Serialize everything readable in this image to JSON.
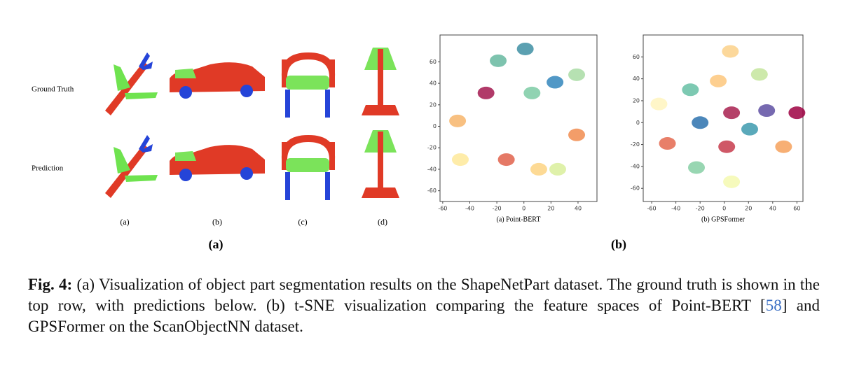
{
  "figure_a": {
    "row_labels": [
      "Ground Truth",
      "Prediction"
    ],
    "object_labels": [
      "(a)",
      "(b)",
      "(c)",
      "(d)"
    ],
    "label": "(a)"
  },
  "figure_b": {
    "label": "(b)"
  },
  "chart_data": [
    {
      "type": "scatter",
      "xlabel": "(a) Point-BERT",
      "x": [
        1,
        -19,
        23,
        39,
        -28,
        6,
        -49,
        39,
        -47,
        -13,
        11,
        25
      ],
      "y": [
        72,
        61,
        41,
        48,
        31,
        31,
        5,
        -8,
        -31,
        -31,
        -40,
        -40
      ],
      "colors": [
        "#3e8fa3",
        "#66b9a0",
        "#3286bc",
        "#a9dca4",
        "#a3174f",
        "#7ccba4",
        "#f7b56b",
        "#f18c4f",
        "#fee99a",
        "#e0624b",
        "#fdd482",
        "#d9ef9b"
      ],
      "xlim": [
        -62,
        54
      ],
      "ylim": [
        -70,
        85
      ],
      "xticks": [
        -60,
        -40,
        -20,
        0,
        20,
        40
      ],
      "yticks": [
        60,
        40,
        20,
        0,
        -20,
        -40,
        -60
      ]
    },
    {
      "type": "scatter",
      "xlabel": "(b) GPSFormer",
      "x": [
        5,
        29,
        -5,
        -28,
        -54,
        -20,
        6,
        35,
        60,
        21,
        -47,
        2,
        49,
        -23,
        6
      ],
      "y": [
        65,
        44,
        38,
        30,
        17,
        0,
        9,
        11,
        9,
        -6,
        -19,
        -22,
        -22,
        -41,
        -54
      ],
      "colors": [
        "#fcd18a",
        "#c4e59c",
        "#fdc77c",
        "#66c0a4",
        "#fff5be",
        "#2d72ae",
        "#a8204f",
        "#5e4fa2",
        "#9e0142",
        "#3d9aae",
        "#e4694f",
        "#c73b4c",
        "#f6a15c",
        "#86cfa5",
        "#f5f9b0"
      ],
      "xlim": [
        -67,
        65
      ],
      "ylim": [
        -72,
        80
      ],
      "xticks": [
        -60,
        -40,
        -20,
        0,
        20,
        40,
        60
      ],
      "yticks": [
        60,
        40,
        20,
        0,
        -20,
        -40,
        -60
      ]
    }
  ],
  "caption": {
    "label": "Fig. 4:",
    "text_before_ref": "(a) Visualization of object part segmentation results on the ShapeNetPart dataset. The ground truth is shown in the top row, with predictions below. (b) t-SNE visualization comparing the feature spaces of Point-BERT [",
    "ref": "58",
    "text_after_ref": "] and GPSFormer on the ScanObjectNN dataset."
  }
}
